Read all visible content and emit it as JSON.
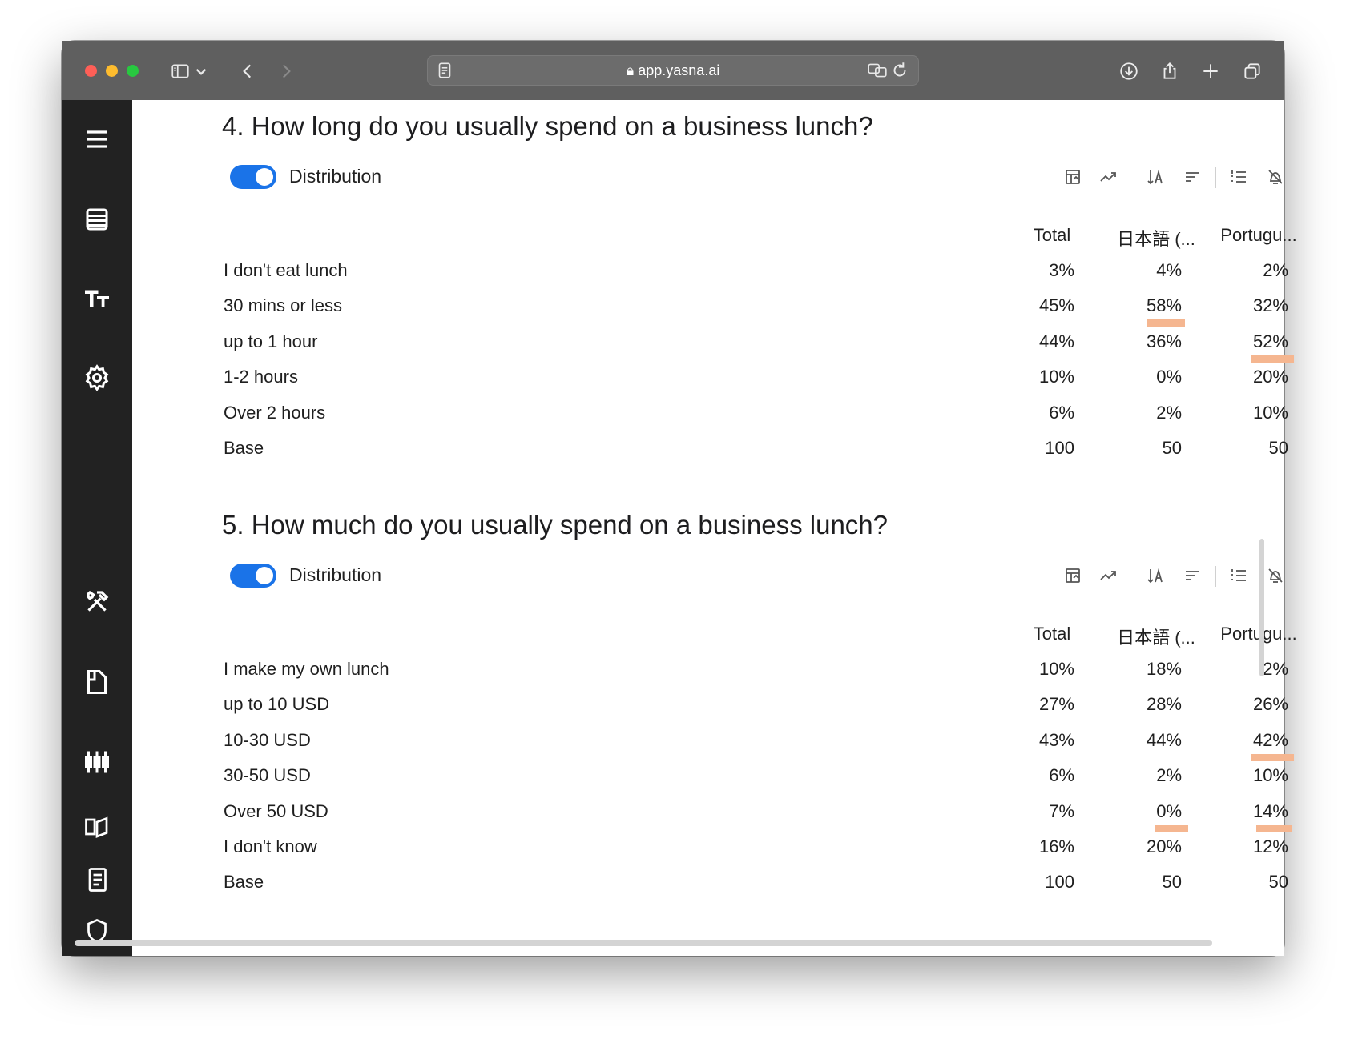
{
  "browser": {
    "url": "app.yasna.ai",
    "toolbar_icons": [
      "sidebar-toggle-icon",
      "chevron-down-icon",
      "back-icon",
      "forward-icon",
      "reader-icon",
      "lock-icon",
      "translate-icon",
      "reload-icon",
      "download-icon",
      "share-icon",
      "new-tab-icon",
      "tab-overview-icon"
    ]
  },
  "sidebar": {
    "items": [
      {
        "name": "menu",
        "icon": "hamburger-menu-icon"
      },
      {
        "name": "data",
        "icon": "table-list-icon"
      },
      {
        "name": "text",
        "icon": "text-size-icon"
      },
      {
        "name": "settings",
        "icon": "gear-icon"
      },
      {
        "name": "tools",
        "icon": "hammer-wrench-icon"
      },
      {
        "name": "document",
        "icon": "document-icon"
      },
      {
        "name": "filters",
        "icon": "sliders-icon"
      },
      {
        "name": "guide",
        "icon": "open-book-icon"
      },
      {
        "name": "report",
        "icon": "report-scroll-icon"
      },
      {
        "name": "security",
        "icon": "shield-icon"
      }
    ]
  },
  "tool_icons": [
    "crosstab-icon",
    "trend-icon",
    "sort-alpha-icon",
    "sort-lines-icon",
    "numbered-list-icon",
    "hide-icon"
  ],
  "toggle_label": "Distribution",
  "colors": {
    "accent": "#1a73e8",
    "highlight": "#f5b690",
    "sidebar": "#222222"
  },
  "questions": [
    {
      "title": "4. How long do you usually spend on a business lunch?",
      "columns": [
        "Total",
        "日本語 (...",
        "Portugu..."
      ],
      "rows": [
        {
          "label": "I don't eat lunch",
          "values": [
            "3%",
            "4%",
            "2%"
          ]
        },
        {
          "label": "30 mins or less",
          "values": [
            "45%",
            "58%",
            "32%"
          ]
        },
        {
          "label": "up to 1 hour",
          "values": [
            "44%",
            "36%",
            "52%"
          ]
        },
        {
          "label": "1-2 hours",
          "values": [
            "10%",
            "0%",
            "20%"
          ]
        },
        {
          "label": "Over 2 hours",
          "values": [
            "6%",
            "2%",
            "10%"
          ]
        },
        {
          "label": "Base",
          "values": [
            "100",
            "50",
            "50"
          ]
        }
      ]
    },
    {
      "title": "5. How much do you usually spend on a business lunch?",
      "columns": [
        "Total",
        "日本語 (...",
        "Portugu..."
      ],
      "rows": [
        {
          "label": "I make my own lunch",
          "values": [
            "10%",
            "18%",
            "2%"
          ]
        },
        {
          "label": "up to 10 USD",
          "values": [
            "27%",
            "28%",
            "26%"
          ]
        },
        {
          "label": "10-30 USD",
          "values": [
            "43%",
            "44%",
            "42%"
          ]
        },
        {
          "label": "30-50 USD",
          "values": [
            "6%",
            "2%",
            "10%"
          ]
        },
        {
          "label": "Over 50 USD",
          "values": [
            "7%",
            "0%",
            "14%"
          ]
        },
        {
          "label": "I don't know",
          "values": [
            "16%",
            "20%",
            "12%"
          ]
        },
        {
          "label": "Base",
          "values": [
            "100",
            "50",
            "50"
          ]
        }
      ]
    }
  ]
}
